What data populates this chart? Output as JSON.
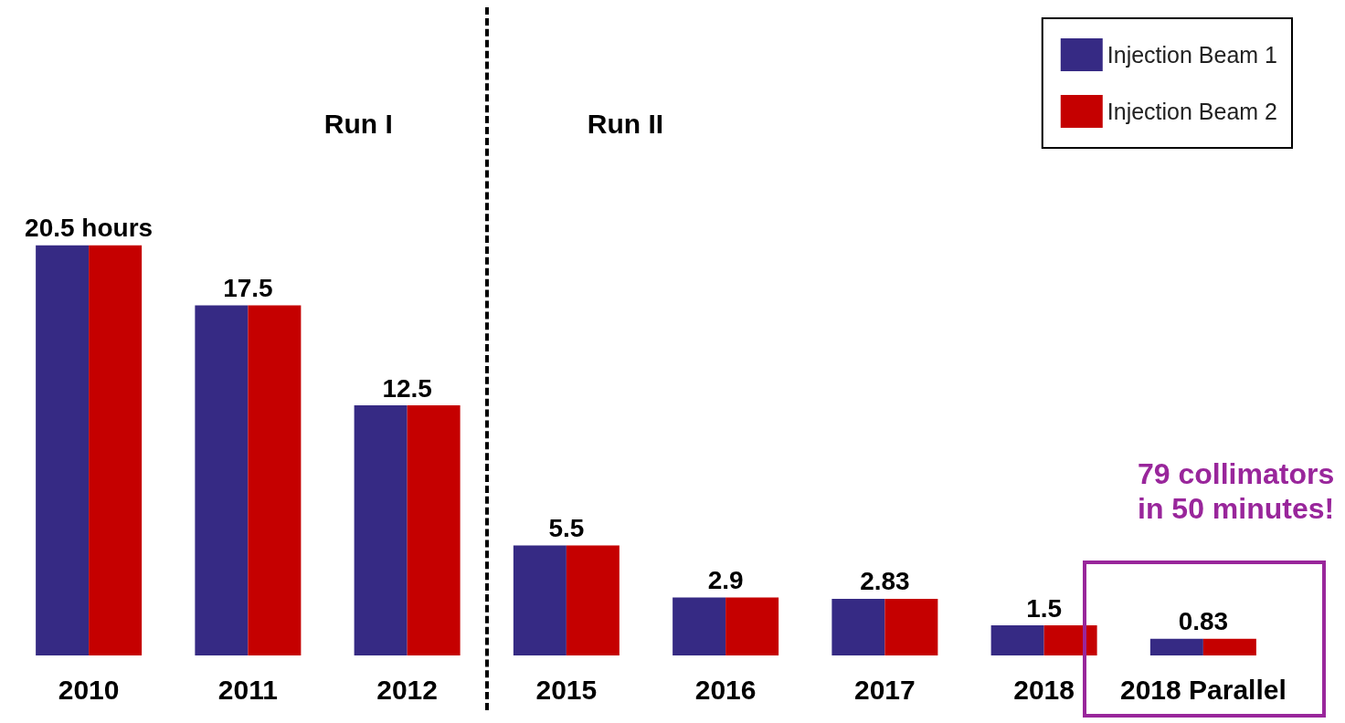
{
  "chart_data": {
    "type": "bar",
    "categories": [
      "2010",
      "2011",
      "2012",
      "2015",
      "2016",
      "2017",
      "2018",
      "2018 Parallel"
    ],
    "series": [
      {
        "name": "Injection Beam 1",
        "color": "#362a84",
        "values": [
          20.5,
          17.5,
          12.5,
          5.5,
          2.9,
          2.83,
          1.5,
          0.83
        ],
        "value_labels": [
          "20.5 hours",
          "17.5",
          "12.5",
          "5.5",
          "2.9",
          "2.83",
          "1.5",
          "0.83"
        ]
      },
      {
        "name": "Injection Beam 2",
        "color": "#c50000",
        "values": [
          20.5,
          17.5,
          12.5,
          5.5,
          2.9,
          2.83,
          1.5,
          0.83
        ]
      }
    ],
    "annotations": [
      "Run I",
      "Run II",
      "79 collimators\nin 50 minutes!"
    ],
    "legend": "top right"
  }
}
